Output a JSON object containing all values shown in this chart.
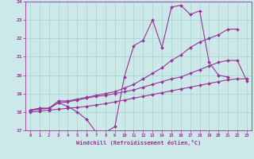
{
  "xlabel": "Windchill (Refroidissement éolien,°C)",
  "xlim": [
    -0.5,
    23.5
  ],
  "ylim": [
    17,
    24
  ],
  "yticks": [
    17,
    18,
    19,
    20,
    21,
    22,
    23,
    24
  ],
  "xticks": [
    0,
    1,
    2,
    3,
    4,
    5,
    6,
    7,
    8,
    9,
    10,
    11,
    12,
    13,
    14,
    15,
    16,
    17,
    18,
    19,
    20,
    21,
    22,
    23
  ],
  "bg_color": "#cce8e8",
  "line_color": "#993399",
  "grid_color": "#99cccc",
  "series": [
    {
      "x": [
        0,
        1,
        2,
        3,
        4,
        5,
        6,
        7,
        8,
        9,
        10,
        11,
        12,
        13,
        14,
        15,
        16,
        17,
        18,
        19,
        20,
        21
      ],
      "y": [
        18.1,
        18.2,
        18.2,
        18.5,
        18.3,
        18.0,
        17.6,
        16.9,
        16.9,
        17.2,
        19.9,
        21.6,
        21.9,
        23.0,
        21.5,
        23.7,
        23.8,
        23.3,
        23.5,
        20.7,
        20.0,
        19.9
      ]
    },
    {
      "x": [
        0,
        1,
        2,
        3,
        4,
        5,
        6,
        7,
        8,
        9,
        10,
        11,
        12,
        13,
        14,
        15,
        16,
        17,
        18,
        19,
        20,
        21,
        22
      ],
      "y": [
        18.1,
        18.2,
        18.2,
        18.6,
        18.6,
        18.7,
        18.8,
        18.9,
        19.0,
        19.1,
        19.3,
        19.5,
        19.8,
        20.1,
        20.4,
        20.8,
        21.1,
        21.5,
        21.8,
        22.0,
        22.2,
        22.5,
        22.5
      ]
    },
    {
      "x": [
        0,
        1,
        2,
        3,
        4,
        5,
        6,
        7,
        8,
        9,
        10,
        11,
        12,
        13,
        14,
        15,
        16,
        17,
        18,
        19,
        20,
        21,
        22,
        23
      ],
      "y": [
        18.1,
        18.15,
        18.2,
        18.5,
        18.55,
        18.65,
        18.75,
        18.85,
        18.9,
        19.0,
        19.1,
        19.2,
        19.35,
        19.5,
        19.65,
        19.8,
        19.9,
        20.1,
        20.3,
        20.5,
        20.7,
        20.8,
        20.8,
        19.7
      ]
    },
    {
      "x": [
        0,
        1,
        2,
        3,
        4,
        5,
        6,
        7,
        8,
        9,
        10,
        11,
        12,
        13,
        14,
        15,
        16,
        17,
        18,
        19,
        20,
        21,
        22,
        23
      ],
      "y": [
        18.0,
        18.05,
        18.1,
        18.15,
        18.2,
        18.25,
        18.3,
        18.38,
        18.45,
        18.55,
        18.65,
        18.75,
        18.85,
        18.95,
        19.05,
        19.15,
        19.25,
        19.35,
        19.45,
        19.55,
        19.65,
        19.75,
        19.8,
        19.8
      ]
    }
  ]
}
